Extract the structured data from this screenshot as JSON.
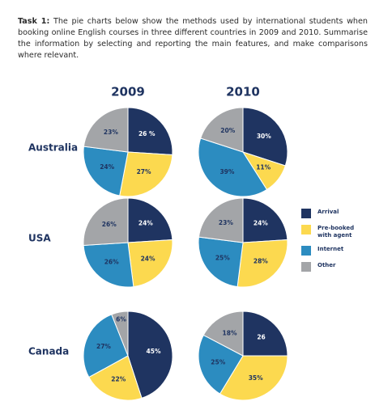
{
  "task": {
    "label": "Task 1:",
    "text": "The pie charts below show the methods used by international students when booking online English courses in three different countries in 2009 and 2010. Summarise the information by selecting and reporting the main features, and make comparisons where relevant."
  },
  "chart_data": {
    "type": "pie",
    "categories": [
      "Arrival",
      "Pre-booked with agent",
      "Internet",
      "Other"
    ],
    "colors": [
      "#1f3461",
      "#fcd94f",
      "#2c8cc0",
      "#a3a5a8"
    ],
    "columns": [
      "2009",
      "2010"
    ],
    "rows": [
      {
        "name": "Australia",
        "pies": [
          {
            "values": [
              26,
              27,
              24,
              23
            ],
            "value_labels": [
              "26 %",
              "27%",
              "24%",
              "23%"
            ]
          },
          {
            "values": [
              30,
              11,
              39,
              20
            ],
            "value_labels": [
              "30%",
              "11%",
              "39%",
              "20%"
            ]
          }
        ]
      },
      {
        "name": "USA",
        "pies": [
          {
            "values": [
              24,
              24,
              26,
              26
            ],
            "value_labels": [
              "24%",
              "24%",
              "26%",
              "26%"
            ]
          },
          {
            "values": [
              24,
              28,
              25,
              23
            ],
            "value_labels": [
              "24%",
              "28%",
              "25%",
              "23%"
            ]
          }
        ]
      },
      {
        "name": "Canada",
        "pies": [
          {
            "values": [
              45,
              22,
              27,
              6
            ],
            "value_labels": [
              "45%",
              "22%",
              "27%",
              "6%"
            ]
          },
          {
            "values": [
              26,
              35,
              25,
              18
            ],
            "value_labels": [
              "26",
              "35%",
              "25%",
              "18%"
            ]
          }
        ]
      }
    ]
  }
}
